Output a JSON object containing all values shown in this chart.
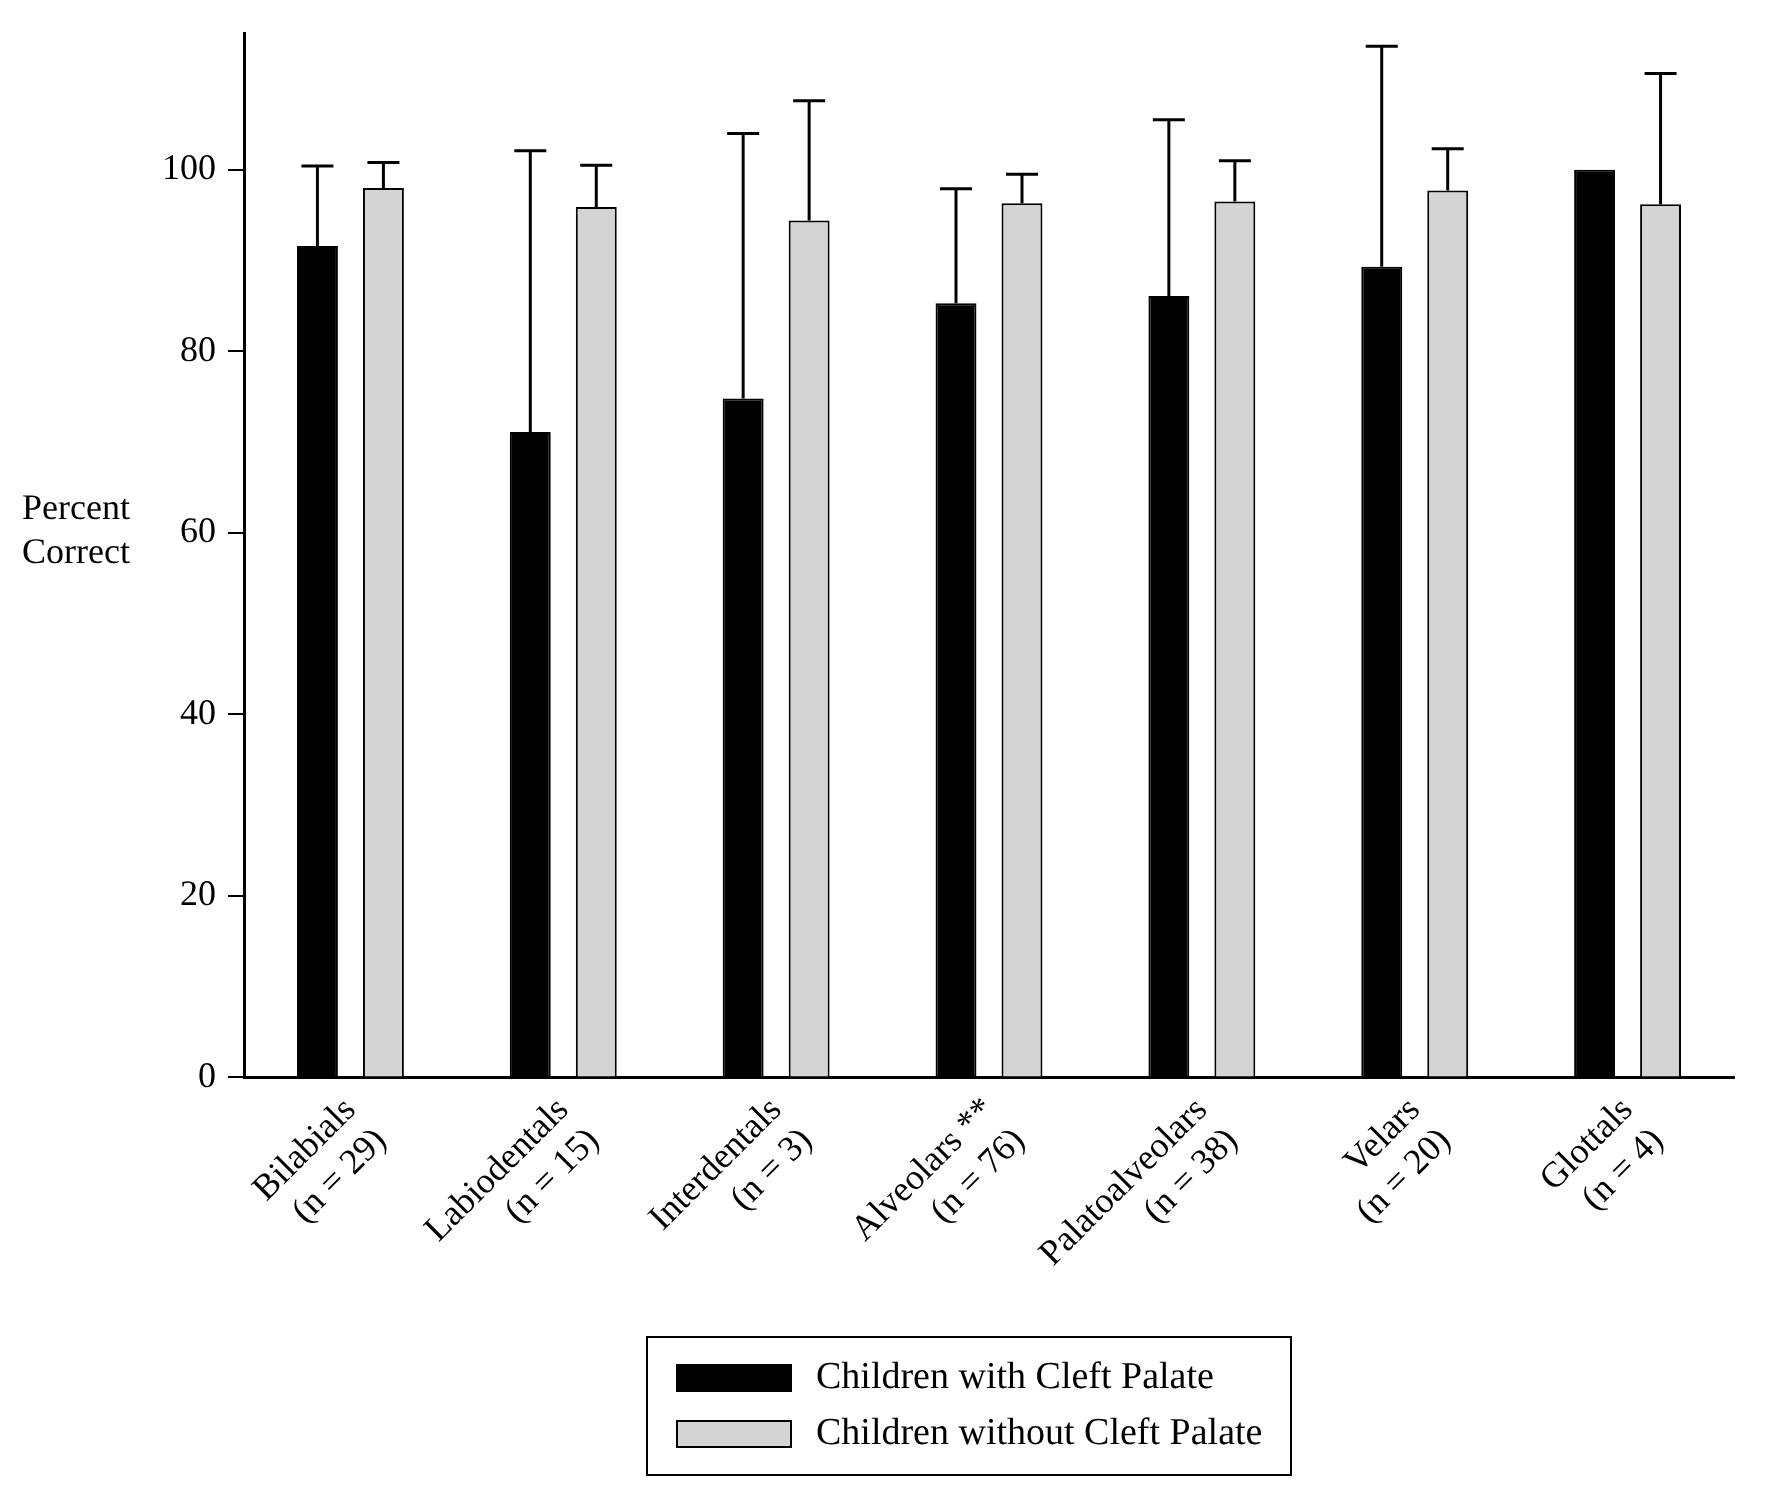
{
  "chart_data": {
    "type": "bar",
    "ylabel": "Percent\nCorrect",
    "categories": [
      "Bilabials\n(n = 29)",
      "Labiodentals\n(n = 15)",
      "Interdentals\n(n = 3)",
      "Alveolars **\n(n = 76)",
      "Palatoalveolars\n(n = 38)",
      "Velars\n(n = 20)",
      "Glottals\n(n = 4)"
    ],
    "series": [
      {
        "name": "Children with Cleft Palate",
        "color": "#000000",
        "values": [
          91.6,
          71.1,
          74.8,
          85.3,
          86.1,
          89.3,
          100
        ],
        "errors": [
          [
            91.6,
            100.4
          ],
          [
            71.1,
            102.1
          ],
          [
            74.8,
            104.0
          ],
          [
            85.3,
            97.9
          ],
          [
            86.1,
            105.5
          ],
          [
            89.3,
            113.6
          ],
          null
        ]
      },
      {
        "name": "Children without Cleft Palate",
        "color": "#d4d4d4",
        "values": [
          98.0,
          95.9,
          94.4,
          96.3,
          96.5,
          97.7,
          96.2
        ],
        "errors": [
          [
            98.0,
            100.8
          ],
          [
            95.9,
            100.5
          ],
          [
            94.4,
            107.6
          ],
          [
            96.3,
            99.5
          ],
          [
            96.5,
            101.0
          ],
          [
            97.7,
            102.3
          ],
          [
            96.2,
            110.6
          ]
        ]
      }
    ],
    "ylim": [
      0,
      115
    ],
    "yticks": [
      0,
      20,
      40,
      60,
      80,
      100
    ],
    "grid": false,
    "legend": "bottom"
  }
}
